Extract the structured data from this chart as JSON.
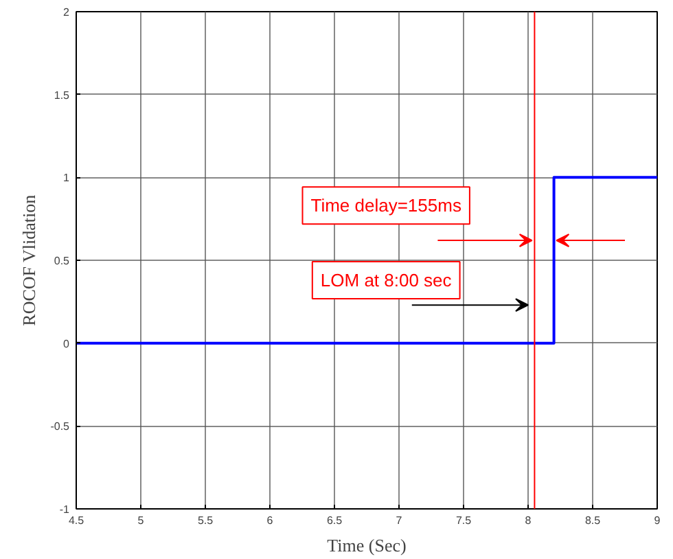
{
  "chart_data": {
    "type": "step",
    "xlabel": "Time (Sec)",
    "ylabel": "ROCOF Vlidation",
    "x": [
      4.5,
      8.2,
      9
    ],
    "series": [
      {
        "color": "#0000ff",
        "values": [
          0,
          1,
          1
        ]
      }
    ],
    "xlim": [
      4.5,
      9
    ],
    "ylim": [
      -1,
      2
    ],
    "xticks": [
      4.5,
      5,
      5.5,
      6,
      6.5,
      7,
      7.5,
      8,
      8.5,
      9
    ],
    "yticks": [
      -1,
      -0.5,
      0,
      0.5,
      1,
      1.5,
      2
    ],
    "grid": true,
    "line_style": "solid",
    "marker": "none",
    "ref_lines": [
      {
        "axis": "x",
        "value": 8.05,
        "label": null,
        "color": "#ff0000"
      }
    ],
    "annotations": [
      "Time delay=155ms",
      "LOM at 8:00 sec"
    ]
  }
}
